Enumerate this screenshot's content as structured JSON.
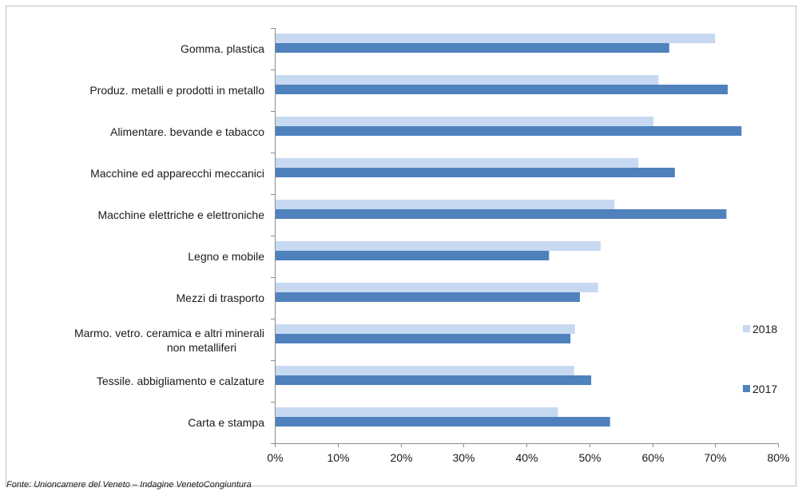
{
  "chart_data": {
    "type": "bar",
    "orientation": "horizontal",
    "categories": [
      "Gomma. plastica",
      "Produz. metalli e prodotti in metallo",
      "Alimentare. bevande e tabacco",
      "Macchine ed apparecchi meccanici",
      "Macchine elettriche e elettroniche",
      "Legno e mobile",
      "Mezzi di trasporto",
      "Marmo. vetro. ceramica e altri minerali non metalliferi",
      "Tessile. abbigliamento e calzature",
      "Carta e stampa"
    ],
    "series": [
      {
        "name": "2018",
        "values": [
          70.0,
          61.0,
          60.2,
          57.8,
          54.0,
          51.8,
          51.4,
          47.7,
          47.6,
          45.0
        ]
      },
      {
        "name": "2017",
        "values": [
          62.7,
          72.0,
          74.2,
          63.6,
          71.8,
          43.6,
          48.5,
          47.0,
          50.3,
          53.3
        ]
      }
    ],
    "xlim": [
      0,
      80
    ],
    "xticks": [
      "0%",
      "10%",
      "20%",
      "30%",
      "40%",
      "50%",
      "60%",
      "70%",
      "80%"
    ],
    "xunit": "%",
    "grid": false,
    "legend": "right",
    "colors": {
      "2018": "#c6d9f1",
      "2017": "#4f81bd"
    },
    "source": "Fonte: Unioncamere del Veneto – Indagine VenetoCongiuntura"
  }
}
